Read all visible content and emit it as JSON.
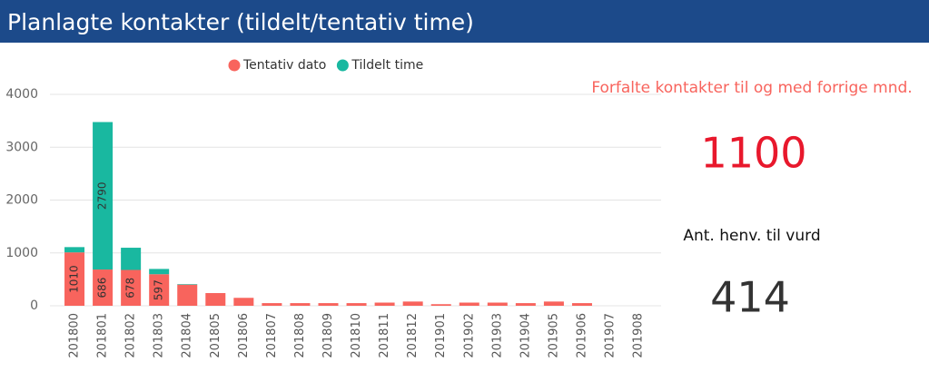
{
  "header": {
    "title": "Planlagte kontakter (tildelt/tentativ time)"
  },
  "chart_data": {
    "type": "bar",
    "stacked": true,
    "categories": [
      "201800",
      "201801",
      "201802",
      "201803",
      "201804",
      "201805",
      "201806",
      "201807",
      "201808",
      "201809",
      "201810",
      "201811",
      "201812",
      "201901",
      "201902",
      "201903",
      "201904",
      "201905",
      "201906",
      "201907",
      "201908"
    ],
    "series": [
      {
        "name": "Tentativ dato",
        "color": "#f8645d",
        "values": [
          1010,
          686,
          678,
          597,
          400,
          240,
          150,
          50,
          50,
          50,
          50,
          60,
          80,
          30,
          60,
          60,
          50,
          80,
          50,
          0,
          0
        ]
      },
      {
        "name": "Tildelt time",
        "color": "#19b8a0",
        "values": [
          100,
          2790,
          420,
          100,
          10,
          0,
          0,
          0,
          0,
          0,
          0,
          0,
          0,
          0,
          0,
          0,
          0,
          0,
          0,
          0,
          0
        ]
      }
    ],
    "ylim": [
      0,
      4000
    ],
    "yticks": [
      0,
      1000,
      2000,
      3000,
      4000
    ],
    "grid": true
  },
  "kpis": [
    {
      "title": "Forfalte kontakter til og med forrige mnd.",
      "value": "1100",
      "color": "#e8182c",
      "title_color": "#f8645d"
    },
    {
      "title": "Ant. henv. til vurd",
      "value": "414",
      "color": "#333333",
      "title_color": "#111111"
    }
  ]
}
